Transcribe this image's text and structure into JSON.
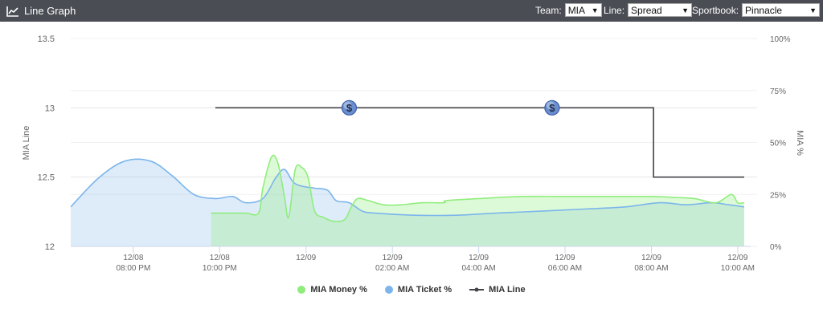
{
  "header": {
    "title": "Line Graph",
    "team_label": "Team:",
    "team_value": "MIA",
    "line_label": "Line:",
    "line_value": "Spread",
    "sportsbook_label": "Sportbook:",
    "sportsbook_value": "Pinnacle"
  },
  "colors": {
    "money": "#90ed7d",
    "ticket": "#7cb5ec",
    "line": "#434348",
    "header_bg": "#4a4d54"
  },
  "chart_data": {
    "type": "area",
    "xlabel": "",
    "ylabel": "MIA Line",
    "y2label": "MIA %",
    "ylim": [
      12,
      13.5
    ],
    "y2lim": [
      0,
      100
    ],
    "yticks": [
      "13.5",
      "13",
      "12.5",
      "12"
    ],
    "y2ticks": [
      "100%",
      "75%",
      "50%",
      "25%",
      "0%"
    ],
    "xticks": [
      {
        "t": 20,
        "date": "12/08",
        "time": "08:00 PM"
      },
      {
        "t": 22,
        "date": "12/08",
        "time": "10:00 PM"
      },
      {
        "t": 24,
        "date": "12/09",
        "time": ""
      },
      {
        "t": 26,
        "date": "12/09",
        "time": "02:00 AM"
      },
      {
        "t": 28,
        "date": "12/09",
        "time": "04:00 AM"
      },
      {
        "t": 30,
        "date": "12/09",
        "time": "06:00 AM"
      },
      {
        "t": 32,
        "date": "12/09",
        "time": "08:00 AM"
      },
      {
        "t": 34,
        "date": "12/09",
        "time": "10:00 AM"
      }
    ],
    "xrange": [
      18.55,
      34.3
    ],
    "series": [
      {
        "name": "MIA Money %",
        "axis": "pct",
        "points": [
          [
            21.8,
            16
          ],
          [
            22.2,
            16
          ],
          [
            22.6,
            16
          ],
          [
            22.9,
            16
          ],
          [
            23.0,
            28
          ],
          [
            23.2,
            43
          ],
          [
            23.35,
            40
          ],
          [
            23.5,
            24
          ],
          [
            23.6,
            14
          ],
          [
            23.75,
            37
          ],
          [
            23.9,
            38
          ],
          [
            24.05,
            33
          ],
          [
            24.2,
            17
          ],
          [
            24.4,
            14
          ],
          [
            24.65,
            12
          ],
          [
            24.9,
            13
          ],
          [
            25.05,
            19
          ],
          [
            25.2,
            23
          ],
          [
            25.45,
            22
          ],
          [
            25.8,
            20
          ],
          [
            26.2,
            20
          ],
          [
            26.7,
            21
          ],
          [
            27.2,
            21
          ],
          [
            27.25,
            22
          ],
          [
            28,
            23
          ],
          [
            29,
            24
          ],
          [
            30,
            24
          ],
          [
            31,
            24
          ],
          [
            32,
            24
          ],
          [
            32.6,
            23.5
          ],
          [
            33.0,
            23
          ],
          [
            33.5,
            21
          ],
          [
            33.85,
            25
          ],
          [
            34.0,
            21
          ],
          [
            34.15,
            21
          ]
        ]
      },
      {
        "name": "MIA Ticket %",
        "axis": "pct",
        "points": [
          [
            18.55,
            19
          ],
          [
            19.2,
            33
          ],
          [
            19.8,
            41
          ],
          [
            20.4,
            41
          ],
          [
            20.9,
            34
          ],
          [
            21.4,
            25
          ],
          [
            21.9,
            23
          ],
          [
            22.3,
            24
          ],
          [
            22.6,
            21
          ],
          [
            23.0,
            23
          ],
          [
            23.3,
            33
          ],
          [
            23.5,
            37
          ],
          [
            23.7,
            31
          ],
          [
            23.9,
            29
          ],
          [
            24.2,
            28
          ],
          [
            24.5,
            27
          ],
          [
            24.7,
            22
          ],
          [
            25.0,
            21
          ],
          [
            25.3,
            17
          ],
          [
            25.6,
            16
          ],
          [
            26.5,
            15
          ],
          [
            27.5,
            15
          ],
          [
            28.4,
            16
          ],
          [
            29.5,
            17
          ],
          [
            30.5,
            18
          ],
          [
            31.4,
            19
          ],
          [
            32.2,
            21
          ],
          [
            32.8,
            20
          ],
          [
            33.4,
            21
          ],
          [
            33.8,
            20
          ],
          [
            34.15,
            19
          ]
        ]
      },
      {
        "name": "MIA Line",
        "axis": "line",
        "points": [
          [
            21.9,
            13
          ],
          [
            32.05,
            13
          ],
          [
            32.05,
            12.5
          ],
          [
            34.15,
            12.5
          ]
        ]
      }
    ],
    "markers": [
      {
        "t": 25.0,
        "value": 13,
        "symbol": "$"
      },
      {
        "t": 29.7,
        "value": 13,
        "symbol": "$"
      }
    ],
    "legend": [
      "MIA Money %",
      "MIA Ticket %",
      "MIA Line"
    ],
    "legend_position": "bottom",
    "grid": true
  }
}
